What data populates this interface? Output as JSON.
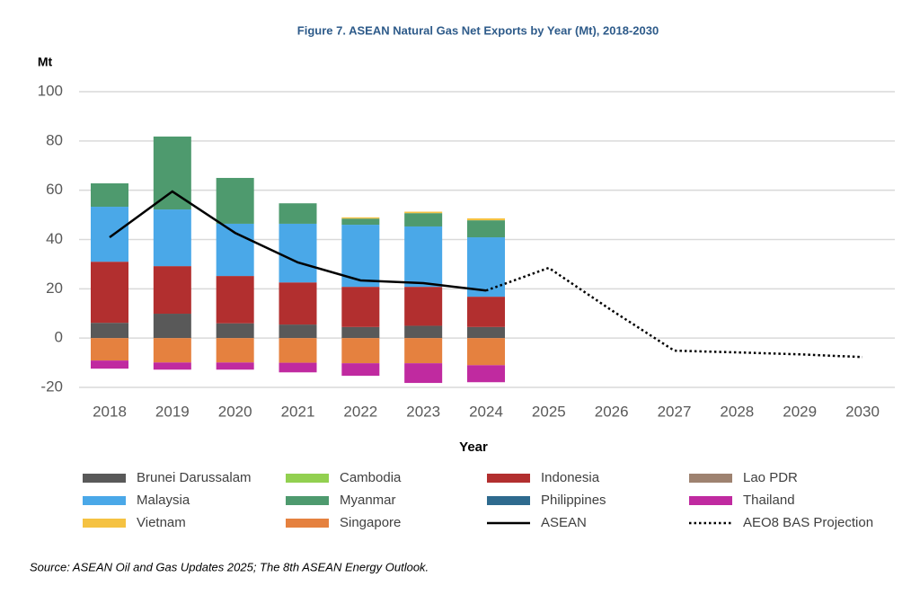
{
  "chart_data": {
    "type": "bar",
    "title": "Figure 7. ASEAN Natural Gas Net Exports by Year (Mt), 2018-2030",
    "y_label": "Mt",
    "x_label": "Year",
    "source": "Source: ASEAN Oil and Gas Updates 2025; The 8th ASEAN Energy Outlook.",
    "categories": [
      "2018",
      "2019",
      "2020",
      "2021",
      "2022",
      "2023",
      "2024",
      "2025",
      "2026",
      "2027",
      "2028",
      "2029",
      "2030"
    ],
    "ylim": [
      -20,
      100
    ],
    "yticks": [
      -20,
      0,
      20,
      40,
      60,
      80,
      100
    ],
    "grid": true,
    "series": [
      {
        "name": "Brunei Darussalam",
        "color": "#595959",
        "values": [
          6.2,
          9.9,
          6,
          5.5,
          4.5,
          5,
          4.5,
          null,
          null,
          null,
          null,
          null,
          null
        ]
      },
      {
        "name": "Cambodia",
        "color": "#92d050",
        "values": [
          0,
          0,
          0,
          0,
          0,
          0,
          0,
          null,
          null,
          null,
          null,
          null,
          null
        ]
      },
      {
        "name": "Indonesia",
        "color": "#b22f2f",
        "values": [
          24.8,
          19.3,
          19.2,
          17.1,
          16.3,
          15.8,
          12.3,
          null,
          null,
          null,
          null,
          null,
          null
        ]
      },
      {
        "name": "Lao PDR",
        "color": "#9e8270",
        "values": [
          0,
          0,
          0,
          0,
          0,
          0,
          0,
          null,
          null,
          null,
          null,
          null,
          null
        ]
      },
      {
        "name": "Malaysia",
        "color": "#4aa8e8",
        "values": [
          22.3,
          23,
          21.2,
          23.8,
          25.2,
          24.5,
          24.1,
          null,
          null,
          null,
          null,
          null,
          null
        ]
      },
      {
        "name": "Myanmar",
        "color": "#4e9a6e",
        "values": [
          9.5,
          29.6,
          18.6,
          8.3,
          2.5,
          5.4,
          6.9,
          null,
          null,
          null,
          null,
          null,
          null
        ]
      },
      {
        "name": "Philippines",
        "color": "#2e6a8e",
        "values": [
          0,
          0,
          0,
          0,
          0,
          0,
          0,
          null,
          null,
          null,
          null,
          null,
          null
        ]
      },
      {
        "name": "Thailand",
        "color": "#c02aa0",
        "values": [
          -3.3,
          -2.9,
          -2.9,
          -3.9,
          -5.1,
          -8,
          -6.9,
          null,
          null,
          null,
          null,
          null,
          null
        ]
      },
      {
        "name": "Vietnam",
        "color": "#f5c242",
        "values": [
          0,
          0,
          0,
          0,
          0.5,
          0.6,
          0.8,
          null,
          null,
          null,
          null,
          null,
          null
        ]
      },
      {
        "name": "Singapore",
        "color": "#e5813f",
        "values": [
          -9.1,
          -9.9,
          -9.9,
          -10,
          -10.2,
          -10.2,
          -11,
          null,
          null,
          null,
          null,
          null,
          null
        ]
      }
    ],
    "lines": [
      {
        "name": "ASEAN",
        "color": "#000000",
        "style": "solid",
        "values": [
          40.9,
          59.5,
          42.7,
          30.7,
          23.4,
          22.3,
          19.3,
          null,
          null,
          null,
          null,
          null,
          null
        ]
      },
      {
        "name": "AEO8 BAS Projection",
        "color": "#000000",
        "style": "dotted",
        "values": [
          null,
          null,
          null,
          null,
          null,
          null,
          19.3,
          28.5,
          11.3,
          -5.1,
          -5.8,
          -6.6,
          -7.7
        ]
      }
    ]
  }
}
